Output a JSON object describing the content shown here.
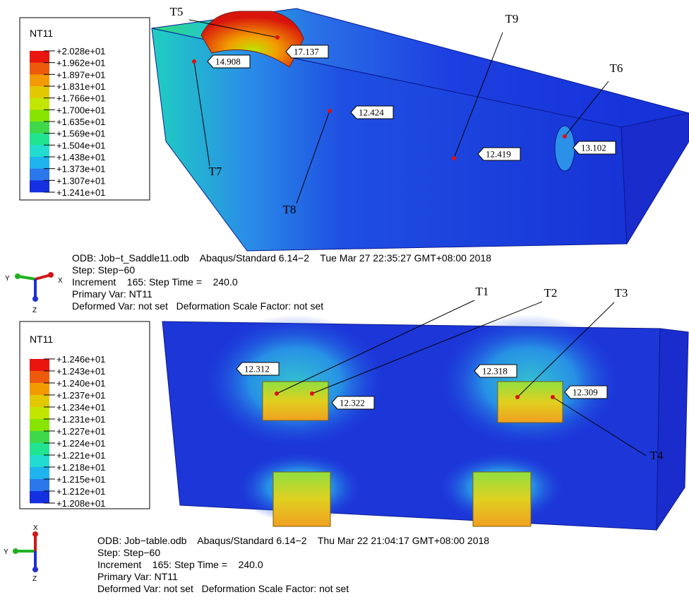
{
  "panels": [
    {
      "legend": {
        "title": "NT11",
        "labels": [
          "+2.028e+01",
          "+1.962e+01",
          "+1.897e+01",
          "+1.831e+01",
          "+1.766e+01",
          "+1.700e+01",
          "+1.635e+01",
          "+1.569e+01",
          "+1.504e+01",
          "+1.438e+01",
          "+1.373e+01",
          "+1.307e+01",
          "+1.241e+01"
        ]
      },
      "probes": [
        {
          "tag": "T5",
          "value": 17.137
        },
        {
          "tag": "T7",
          "value": 14.908
        },
        {
          "tag": "T8",
          "value": 12.424
        },
        {
          "tag": "T9",
          "value": 12.419
        },
        {
          "tag": "T6",
          "value": 13.102
        }
      ],
      "triad": {
        "y": "Y",
        "x": "X",
        "z": "Z"
      },
      "info": [
        "ODB: Job−t_Saddle11.odb    Abaqus/Standard 6.14−2    Tue Mar 27 22:35:27 GMT+08:00 2018",
        "Step: Step−60",
        "Increment    165: Step Time =    240.0",
        "Primary Var: NT11",
        "Deformed Var: not set   Deformation Scale Factor: not set"
      ]
    },
    {
      "legend": {
        "title": "NT11",
        "labels": [
          "+1.246e+01",
          "+1.243e+01",
          "+1.240e+01",
          "+1.237e+01",
          "+1.234e+01",
          "+1.231e+01",
          "+1.227e+01",
          "+1.224e+01",
          "+1.221e+01",
          "+1.218e+01",
          "+1.215e+01",
          "+1.212e+01",
          "+1.208e+01"
        ]
      },
      "probes": [
        {
          "tag": "T1",
          "value": 12.312
        },
        {
          "tag": "T2",
          "value": 12.322
        },
        {
          "tag": "T3",
          "value": 12.318
        },
        {
          "tag": "T4",
          "value": 12.309
        }
      ],
      "triad": {
        "x": "X",
        "y": "Y",
        "z": "Z"
      },
      "info": [
        "ODB: Job−table.odb    Abaqus/Standard 6.14−2    Thu Mar 22 21:04:17 GMT+08:00 2018",
        "Step: Step−60",
        "Increment    165: Step Time =    240.0",
        "Primary Var: NT11",
        "Deformed Var: not set   Deformation Scale Factor: not set"
      ]
    }
  ]
}
